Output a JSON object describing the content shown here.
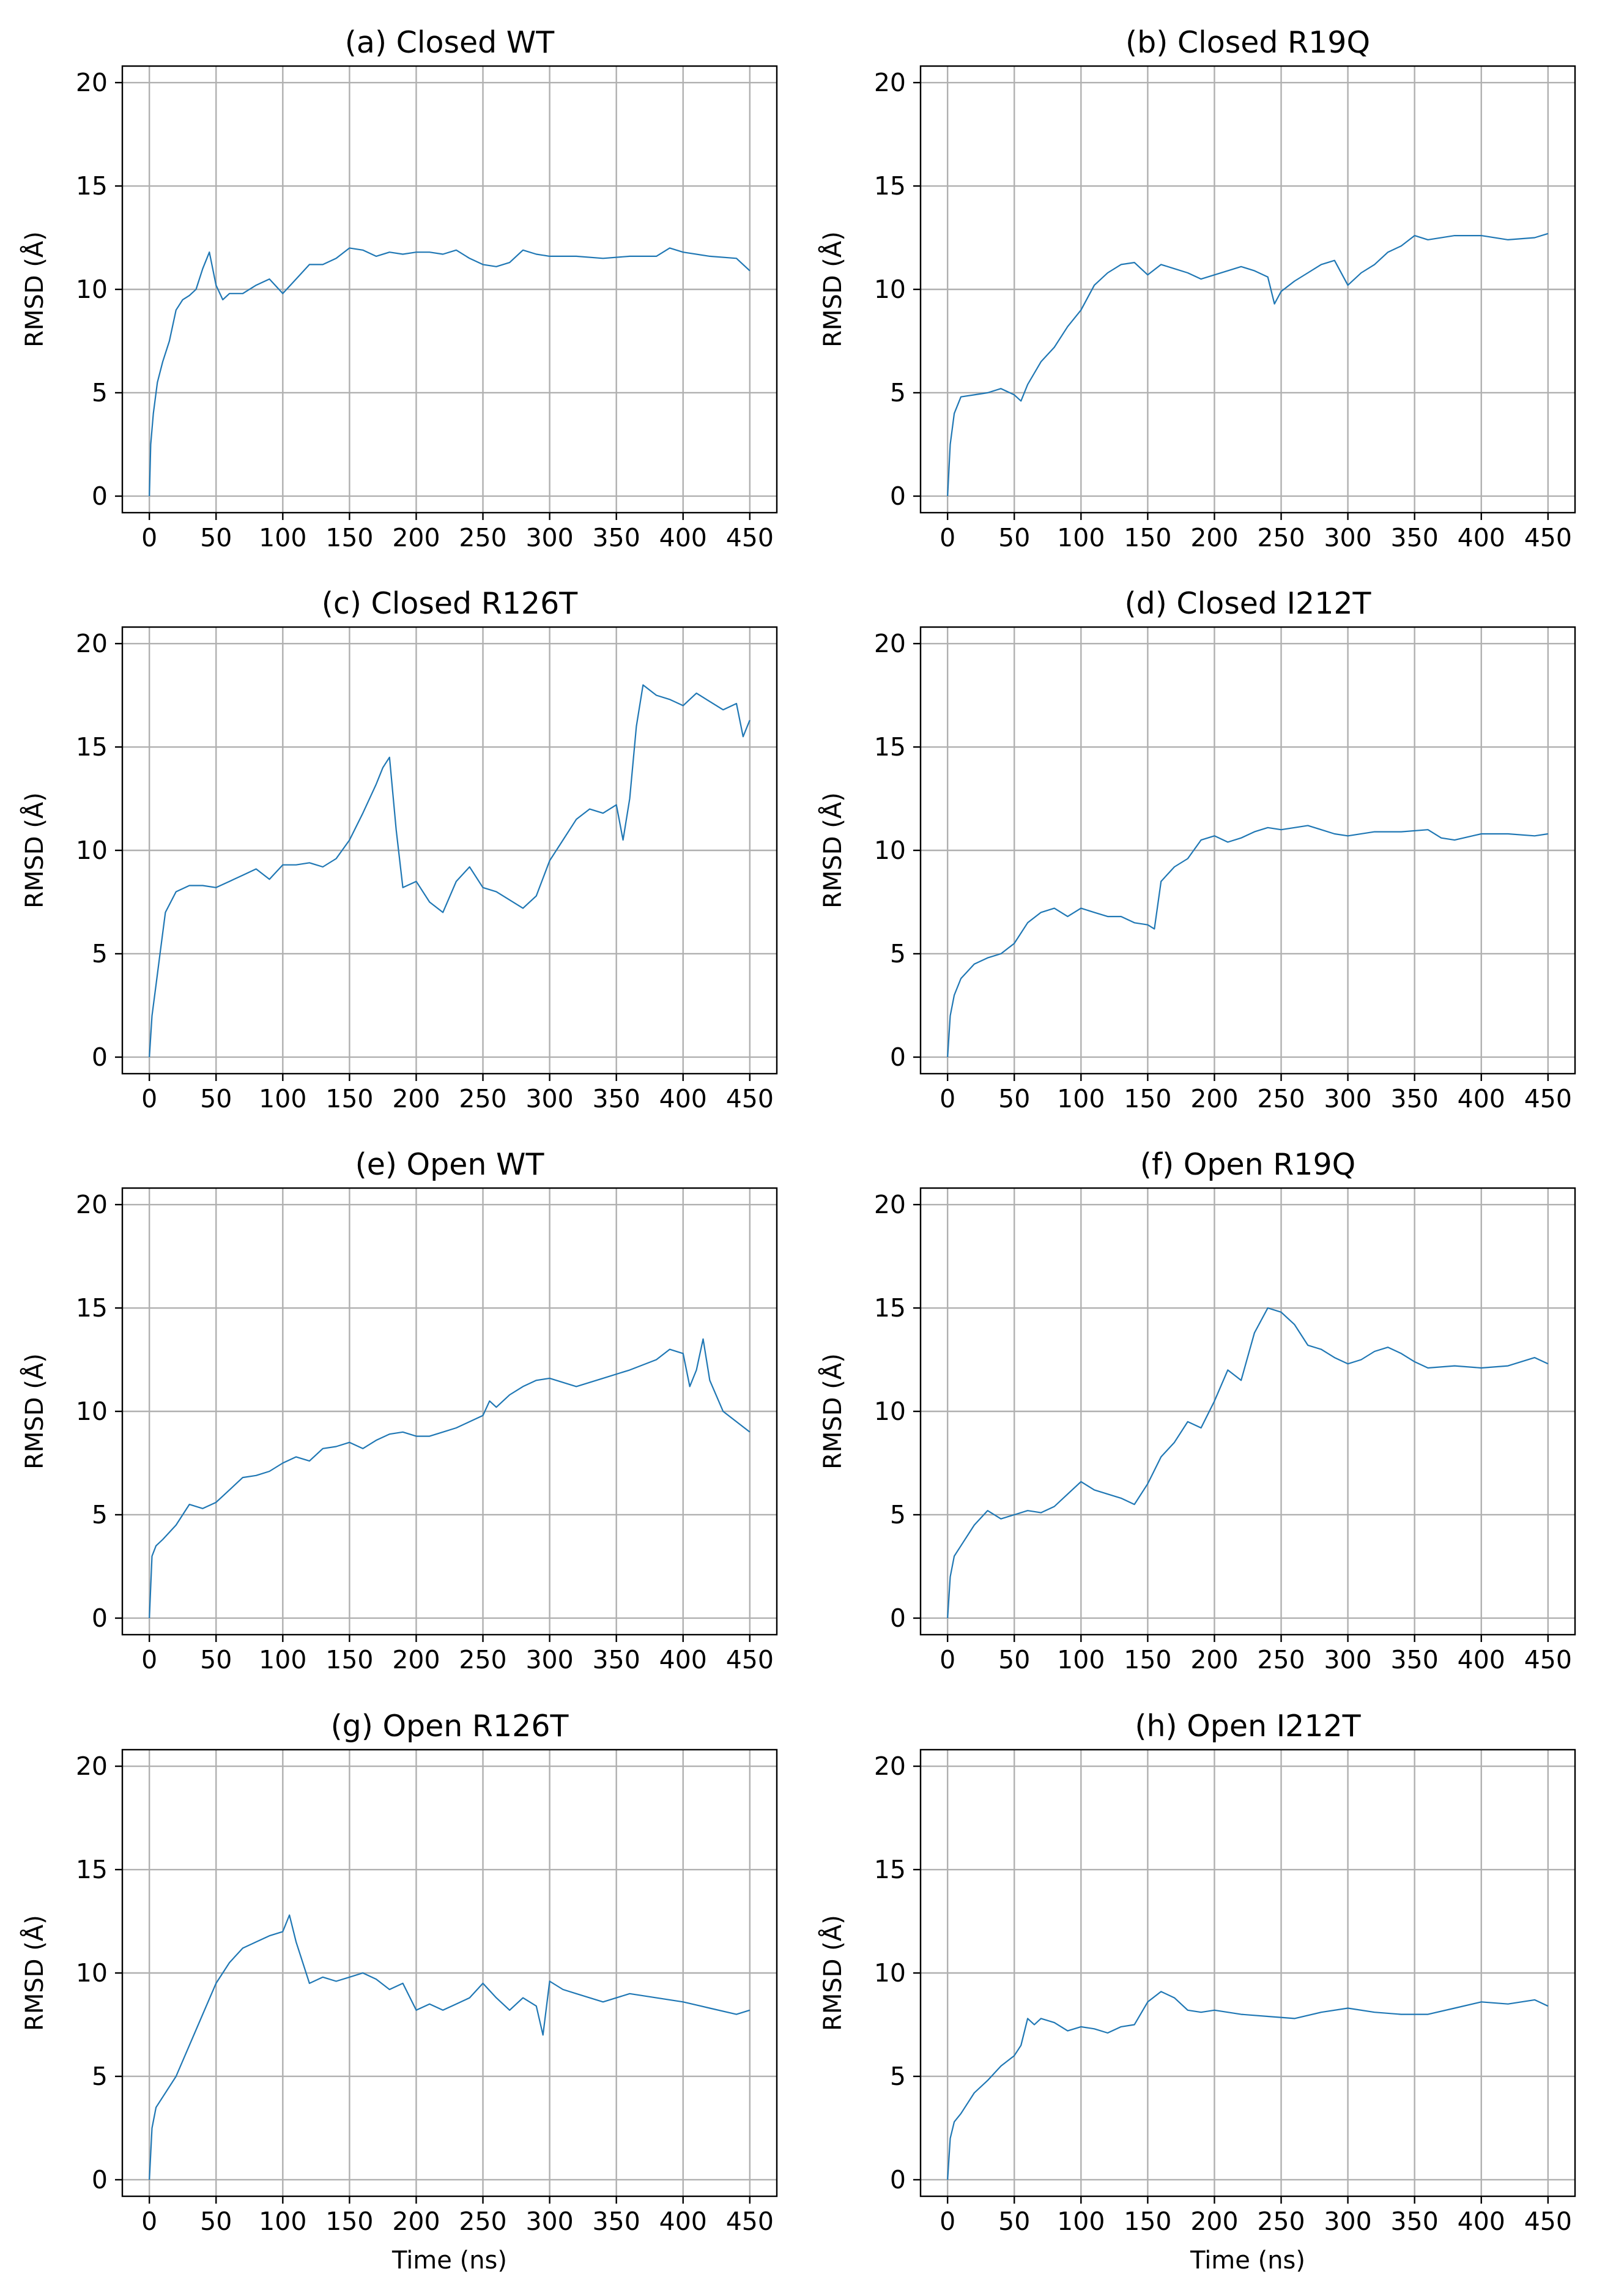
{
  "figure": {
    "line_color": "#1f77b4",
    "grid": true
  },
  "chart_data": [
    {
      "type": "line",
      "title": "(a) Closed WT",
      "xlabel": "",
      "ylabel": "RMSD (Å)",
      "xlim": [
        0,
        450
      ],
      "ylim": [
        0,
        20
      ],
      "x_ticks": [
        0,
        50,
        100,
        150,
        200,
        250,
        300,
        350,
        400,
        450
      ],
      "x_tick_labels": [
        "0",
        "50",
        "100",
        "150",
        "200",
        "250",
        "300",
        "350",
        "400",
        "450"
      ],
      "y_ticks": [
        0,
        5,
        10,
        15,
        20
      ],
      "y_tick_labels": [
        "0",
        "5",
        "10",
        "15",
        "20"
      ],
      "series": [
        {
          "x": [
            0,
            1,
            3,
            6,
            10,
            15,
            20,
            25,
            30,
            35,
            40,
            45,
            50,
            55,
            60,
            70,
            80,
            90,
            100,
            110,
            120,
            130,
            140,
            150,
            160,
            170,
            180,
            190,
            200,
            210,
            220,
            230,
            240,
            250,
            260,
            270,
            280,
            290,
            300,
            320,
            340,
            360,
            380,
            390,
            400,
            420,
            440,
            450
          ],
          "y": [
            0,
            2.5,
            4,
            5.5,
            6.5,
            7.5,
            9,
            9.5,
            9.7,
            10,
            11,
            11.8,
            10.2,
            9.5,
            9.8,
            9.8,
            10.2,
            10.5,
            9.8,
            10.5,
            11.2,
            11.2,
            11.5,
            12,
            11.9,
            11.6,
            11.8,
            11.7,
            11.8,
            11.8,
            11.7,
            11.9,
            11.5,
            11.2,
            11.1,
            11.3,
            11.9,
            11.7,
            11.6,
            11.6,
            11.5,
            11.6,
            11.6,
            12,
            11.8,
            11.6,
            11.5,
            10.9
          ]
        }
      ]
    },
    {
      "type": "line",
      "title": "(b) Closed R19Q",
      "xlabel": "",
      "ylabel": "RMSD (Å)",
      "xlim": [
        0,
        450
      ],
      "ylim": [
        0,
        20
      ],
      "x_ticks": [
        0,
        50,
        100,
        150,
        200,
        250,
        300,
        350,
        400,
        450
      ],
      "x_tick_labels": [
        "0",
        "50",
        "100",
        "150",
        "200",
        "250",
        "300",
        "350",
        "400",
        "450"
      ],
      "y_ticks": [
        0,
        5,
        10,
        15,
        20
      ],
      "y_tick_labels": [
        "0",
        "5",
        "10",
        "15",
        "20"
      ],
      "series": [
        {
          "x": [
            0,
            2,
            5,
            10,
            20,
            30,
            40,
            50,
            55,
            60,
            70,
            80,
            90,
            100,
            110,
            120,
            130,
            140,
            150,
            160,
            170,
            180,
            190,
            200,
            210,
            220,
            230,
            240,
            245,
            250,
            260,
            270,
            280,
            290,
            300,
            310,
            320,
            330,
            340,
            350,
            360,
            380,
            400,
            420,
            440,
            450
          ],
          "y": [
            0,
            2.5,
            4,
            4.8,
            4.9,
            5,
            5.2,
            4.9,
            4.6,
            5.4,
            6.5,
            7.2,
            8.2,
            9,
            10.2,
            10.8,
            11.2,
            11.3,
            10.7,
            11.2,
            11,
            10.8,
            10.5,
            10.7,
            10.9,
            11.1,
            10.9,
            10.6,
            9.3,
            9.9,
            10.4,
            10.8,
            11.2,
            11.4,
            10.2,
            10.8,
            11.2,
            11.8,
            12.1,
            12.6,
            12.4,
            12.6,
            12.6,
            12.4,
            12.5,
            12.7
          ]
        }
      ]
    },
    {
      "type": "line",
      "title": "(c) Closed R126T",
      "xlabel": "",
      "ylabel": "RMSD (Å)",
      "xlim": [
        0,
        450
      ],
      "ylim": [
        0,
        20
      ],
      "x_ticks": [
        0,
        50,
        100,
        150,
        200,
        250,
        300,
        350,
        400,
        450
      ],
      "x_tick_labels": [
        "0",
        "50",
        "100",
        "150",
        "200",
        "250",
        "300",
        "350",
        "400",
        "450"
      ],
      "y_ticks": [
        0,
        5,
        10,
        15,
        20
      ],
      "y_tick_labels": [
        "0",
        "5",
        "10",
        "15",
        "20"
      ],
      "series": [
        {
          "x": [
            0,
            2,
            5,
            8,
            12,
            20,
            30,
            40,
            50,
            60,
            70,
            80,
            90,
            100,
            110,
            120,
            130,
            140,
            150,
            160,
            170,
            175,
            180,
            185,
            190,
            200,
            210,
            220,
            230,
            240,
            250,
            260,
            270,
            280,
            290,
            300,
            310,
            320,
            330,
            340,
            350,
            355,
            360,
            365,
            370,
            380,
            390,
            400,
            410,
            420,
            430,
            440,
            445,
            450
          ],
          "y": [
            0,
            2,
            3.5,
            5,
            7,
            8,
            8.3,
            8.3,
            8.2,
            8.5,
            8.8,
            9.1,
            8.6,
            9.3,
            9.3,
            9.4,
            9.2,
            9.6,
            10.5,
            11.8,
            13.2,
            14,
            14.5,
            11,
            8.2,
            8.5,
            7.5,
            7,
            8.5,
            9.2,
            8.2,
            8,
            7.6,
            7.2,
            7.8,
            9.5,
            10.5,
            11.5,
            12,
            11.8,
            12.2,
            10.5,
            12.5,
            16,
            18,
            17.5,
            17.3,
            17,
            17.6,
            17.2,
            16.8,
            17.1,
            15.5,
            16.3
          ]
        }
      ]
    },
    {
      "type": "line",
      "title": "(d) Closed I212T",
      "xlabel": "",
      "ylabel": "RMSD (Å)",
      "xlim": [
        0,
        450
      ],
      "ylim": [
        0,
        20
      ],
      "x_ticks": [
        0,
        50,
        100,
        150,
        200,
        250,
        300,
        350,
        400,
        450
      ],
      "x_tick_labels": [
        "0",
        "50",
        "100",
        "150",
        "200",
        "250",
        "300",
        "350",
        "400",
        "450"
      ],
      "y_ticks": [
        0,
        5,
        10,
        15,
        20
      ],
      "y_tick_labels": [
        "0",
        "5",
        "10",
        "15",
        "20"
      ],
      "series": [
        {
          "x": [
            0,
            2,
            5,
            10,
            20,
            30,
            40,
            50,
            60,
            70,
            80,
            90,
            100,
            110,
            120,
            130,
            140,
            150,
            155,
            160,
            170,
            180,
            190,
            200,
            210,
            220,
            230,
            240,
            250,
            260,
            270,
            280,
            290,
            300,
            320,
            340,
            360,
            370,
            380,
            400,
            420,
            440,
            450
          ],
          "y": [
            0,
            2,
            3,
            3.8,
            4.5,
            4.8,
            5,
            5.5,
            6.5,
            7,
            7.2,
            6.8,
            7.2,
            7,
            6.8,
            6.8,
            6.5,
            6.4,
            6.2,
            8.5,
            9.2,
            9.6,
            10.5,
            10.7,
            10.4,
            10.6,
            10.9,
            11.1,
            11,
            11.1,
            11.2,
            11,
            10.8,
            10.7,
            10.9,
            10.9,
            11,
            10.6,
            10.5,
            10.8,
            10.8,
            10.7,
            10.8
          ]
        }
      ]
    },
    {
      "type": "line",
      "title": "(e) Open WT",
      "xlabel": "",
      "ylabel": "RMSD (Å)",
      "xlim": [
        0,
        450
      ],
      "ylim": [
        0,
        20
      ],
      "x_ticks": [
        0,
        50,
        100,
        150,
        200,
        250,
        300,
        350,
        400,
        450
      ],
      "x_tick_labels": [
        "0",
        "50",
        "100",
        "150",
        "200",
        "250",
        "300",
        "350",
        "400",
        "450"
      ],
      "y_ticks": [
        0,
        5,
        10,
        15,
        20
      ],
      "y_tick_labels": [
        "0",
        "5",
        "10",
        "15",
        "20"
      ],
      "series": [
        {
          "x": [
            0,
            2,
            5,
            10,
            20,
            30,
            40,
            50,
            60,
            70,
            80,
            90,
            100,
            110,
            120,
            130,
            140,
            150,
            160,
            170,
            180,
            190,
            200,
            210,
            220,
            230,
            240,
            250,
            255,
            260,
            270,
            280,
            290,
            300,
            320,
            340,
            360,
            380,
            390,
            400,
            405,
            410,
            415,
            420,
            430,
            440,
            450
          ],
          "y": [
            0,
            3,
            3.5,
            3.8,
            4.5,
            5.5,
            5.3,
            5.6,
            6.2,
            6.8,
            6.9,
            7.1,
            7.5,
            7.8,
            7.6,
            8.2,
            8.3,
            8.5,
            8.2,
            8.6,
            8.9,
            9,
            8.8,
            8.8,
            9,
            9.2,
            9.5,
            9.8,
            10.5,
            10.2,
            10.8,
            11.2,
            11.5,
            11.6,
            11.2,
            11.6,
            12,
            12.5,
            13,
            12.8,
            11.2,
            12,
            13.5,
            11.5,
            10,
            9.5,
            9
          ]
        }
      ]
    },
    {
      "type": "line",
      "title": "(f) Open R19Q",
      "xlabel": "",
      "ylabel": "RMSD (Å)",
      "xlim": [
        0,
        450
      ],
      "ylim": [
        0,
        20
      ],
      "x_ticks": [
        0,
        50,
        100,
        150,
        200,
        250,
        300,
        350,
        400,
        450
      ],
      "x_tick_labels": [
        "0",
        "50",
        "100",
        "150",
        "200",
        "250",
        "300",
        "350",
        "400",
        "450"
      ],
      "y_ticks": [
        0,
        5,
        10,
        15,
        20
      ],
      "y_tick_labels": [
        "0",
        "5",
        "10",
        "15",
        "20"
      ],
      "series": [
        {
          "x": [
            0,
            2,
            5,
            10,
            20,
            30,
            40,
            50,
            60,
            70,
            80,
            90,
            100,
            110,
            120,
            130,
            140,
            150,
            160,
            170,
            180,
            190,
            200,
            210,
            220,
            230,
            240,
            250,
            260,
            270,
            280,
            290,
            300,
            310,
            320,
            330,
            340,
            350,
            360,
            380,
            400,
            420,
            440,
            450
          ],
          "y": [
            0,
            2,
            3,
            3.5,
            4.5,
            5.2,
            4.8,
            5,
            5.2,
            5.1,
            5.4,
            6,
            6.6,
            6.2,
            6,
            5.8,
            5.5,
            6.5,
            7.8,
            8.5,
            9.5,
            9.2,
            10.5,
            12,
            11.5,
            13.8,
            15,
            14.8,
            14.2,
            13.2,
            13,
            12.6,
            12.3,
            12.5,
            12.9,
            13.1,
            12.8,
            12.4,
            12.1,
            12.2,
            12.1,
            12.2,
            12.6,
            12.3
          ]
        }
      ]
    },
    {
      "type": "line",
      "title": "(g) Open R126T",
      "xlabel": "Time (ns)",
      "ylabel": "RMSD (Å)",
      "xlim": [
        0,
        450
      ],
      "ylim": [
        0,
        20
      ],
      "x_ticks": [
        0,
        50,
        100,
        150,
        200,
        250,
        300,
        350,
        400,
        450
      ],
      "x_tick_labels": [
        "0",
        "50",
        "100",
        "150",
        "200",
        "250",
        "300",
        "350",
        "400",
        "450"
      ],
      "y_ticks": [
        0,
        5,
        10,
        15,
        20
      ],
      "y_tick_labels": [
        "0",
        "5",
        "10",
        "15",
        "20"
      ],
      "series": [
        {
          "x": [
            0,
            2,
            5,
            10,
            20,
            30,
            40,
            50,
            60,
            70,
            80,
            90,
            100,
            105,
            110,
            120,
            130,
            140,
            150,
            160,
            170,
            180,
            190,
            200,
            210,
            220,
            230,
            240,
            250,
            260,
            270,
            280,
            290,
            295,
            300,
            310,
            320,
            340,
            360,
            380,
            400,
            420,
            440,
            450
          ],
          "y": [
            0,
            2.5,
            3.5,
            4,
            5,
            6.5,
            8,
            9.5,
            10.5,
            11.2,
            11.5,
            11.8,
            12,
            12.8,
            11.5,
            9.5,
            9.8,
            9.6,
            9.8,
            10,
            9.7,
            9.2,
            9.5,
            8.2,
            8.5,
            8.2,
            8.5,
            8.8,
            9.5,
            8.8,
            8.2,
            8.8,
            8.4,
            7,
            9.6,
            9.2,
            9,
            8.6,
            9,
            8.8,
            8.6,
            8.3,
            8,
            8.2
          ]
        }
      ]
    },
    {
      "type": "line",
      "title": "(h) Open I212T",
      "xlabel": "Time (ns)",
      "ylabel": "RMSD (Å)",
      "xlim": [
        0,
        450
      ],
      "ylim": [
        0,
        20
      ],
      "x_ticks": [
        0,
        50,
        100,
        150,
        200,
        250,
        300,
        350,
        400,
        450
      ],
      "x_tick_labels": [
        "0",
        "50",
        "100",
        "150",
        "200",
        "250",
        "300",
        "350",
        "400",
        "450"
      ],
      "y_ticks": [
        0,
        5,
        10,
        15,
        20
      ],
      "y_tick_labels": [
        "0",
        "5",
        "10",
        "15",
        "20"
      ],
      "series": [
        {
          "x": [
            0,
            2,
            5,
            10,
            20,
            30,
            40,
            50,
            55,
            60,
            65,
            70,
            80,
            90,
            100,
            110,
            120,
            130,
            140,
            150,
            160,
            170,
            180,
            190,
            200,
            220,
            240,
            260,
            280,
            300,
            320,
            340,
            360,
            380,
            400,
            420,
            440,
            450
          ],
          "y": [
            0,
            2,
            2.8,
            3.2,
            4.2,
            4.8,
            5.5,
            6,
            6.5,
            7.8,
            7.5,
            7.8,
            7.6,
            7.2,
            7.4,
            7.3,
            7.1,
            7.4,
            7.5,
            8.6,
            9.1,
            8.8,
            8.2,
            8.1,
            8.2,
            8,
            7.9,
            7.8,
            8.1,
            8.3,
            8.1,
            8,
            8,
            8.3,
            8.6,
            8.5,
            8.7,
            8.4
          ]
        }
      ]
    }
  ]
}
